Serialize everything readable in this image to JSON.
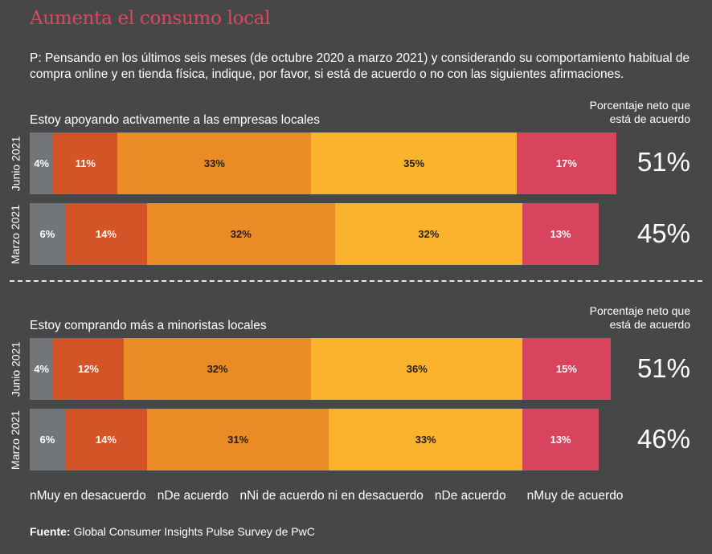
{
  "title": "Aumenta el consumo local",
  "question": "P: Pensando en los últimos seis meses (de octubre 2020 a marzo 2021) y considerando su comportamiento habitual de compra online y en tienda física, indique, por favor, si está de acuerdo o no con las siguientes afirmaciones.",
  "net_header": "Porcentaje neto que está de acuerdo",
  "colors": {
    "muy_en_desacuerdo": "#737679",
    "en_desacuerdo": "#d35426",
    "neutral": "#ea8b26",
    "de_acuerdo": "#fbb22d",
    "muy_de_acuerdo": "#d8435e"
  },
  "legend": [
    {
      "marker": "n",
      "label": "Muy en desacuerdo"
    },
    {
      "marker": "n",
      "label": "De acuerdo"
    },
    {
      "marker": "n",
      "label": "Ni de acuerdo ni en desacuerdo"
    },
    {
      "marker": "n",
      "label": "De acuerdo"
    },
    {
      "marker": "n",
      "label": "Muy de acuerdo"
    }
  ],
  "source": {
    "label": "Fuente:",
    "text": " Global Consumer Insights Pulse Survey de PwC"
  },
  "chart_data": [
    {
      "type": "bar",
      "orientation": "horizontal-stacked",
      "title": "Estoy apoyando activamente a las empresas locales",
      "categories": [
        "Junio 2021",
        "Marzo 2021"
      ],
      "series": [
        {
          "name": "Muy en desacuerdo",
          "values": [
            4,
            6
          ],
          "labels": [
            "4%",
            "6%"
          ]
        },
        {
          "name": "De acuerdo",
          "values": [
            11,
            14
          ],
          "labels": [
            "11%",
            "14%"
          ]
        },
        {
          "name": "Ni de acuerdo ni en desacuerdo",
          "values": [
            33,
            32
          ],
          "labels": [
            "33%",
            "32%"
          ]
        },
        {
          "name": "De acuerdo",
          "values": [
            35,
            32
          ],
          "labels": [
            "35%",
            "32%"
          ]
        },
        {
          "name": "Muy de acuerdo",
          "values": [
            17,
            13
          ],
          "labels": [
            "17%",
            "13%"
          ]
        }
      ],
      "net_agree": [
        "51%",
        "45%"
      ]
    },
    {
      "type": "bar",
      "orientation": "horizontal-stacked",
      "title": "Estoy comprando más a minoristas locales",
      "categories": [
        "Junio 2021",
        "Marzo 2021"
      ],
      "series": [
        {
          "name": "Muy en desacuerdo",
          "values": [
            4,
            6
          ],
          "labels": [
            "4%",
            "6%"
          ]
        },
        {
          "name": "De acuerdo",
          "values": [
            12,
            14
          ],
          "labels": [
            "12%",
            "14%"
          ]
        },
        {
          "name": "Ni de acuerdo ni en desacuerdo",
          "values": [
            32,
            31
          ],
          "labels": [
            "32%",
            "31%"
          ]
        },
        {
          "name": "De acuerdo",
          "values": [
            36,
            33
          ],
          "labels": [
            "36%",
            "33%"
          ]
        },
        {
          "name": "Muy de acuerdo",
          "values": [
            15,
            13
          ],
          "labels": [
            "15%",
            "13%"
          ]
        }
      ],
      "net_agree": [
        "51%",
        "46%"
      ]
    }
  ]
}
